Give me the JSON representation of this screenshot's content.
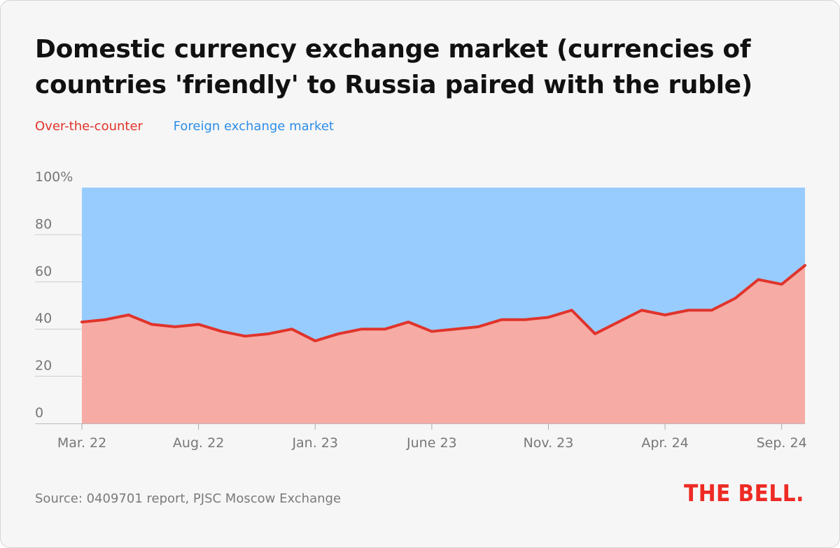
{
  "card": {
    "title": "Domestic currency exchange market (currencies of countries 'friendly' to Russia paired with the ruble)",
    "source": "Source: 0409701 report, PJSC Moscow Exchange",
    "logo": "THE BELL."
  },
  "colors": {
    "otc_line": "#e0342b",
    "otc_fill": "#f7aba5",
    "fx_fill": "#99ccfe",
    "otc_legend": "#e0342b",
    "fx_legend": "#2e8ee8",
    "axis_text": "#777777",
    "grid": "#cccccc"
  },
  "chart_data": {
    "type": "area",
    "stacked": true,
    "percent": true,
    "title": "Domestic currency exchange market (currencies of countries 'friendly' to Russia paired with the ruble)",
    "legend": [
      {
        "name": "Over-the-counter",
        "color": "#e0342b"
      },
      {
        "name": "Foreign exchange market",
        "color": "#2e8ee8"
      }
    ],
    "legend_position": "top-left",
    "x": [
      "2022-03",
      "2022-04",
      "2022-05",
      "2022-06",
      "2022-07",
      "2022-08",
      "2022-09",
      "2022-10",
      "2022-11",
      "2022-12",
      "2023-01",
      "2023-02",
      "2023-03",
      "2023-04",
      "2023-05",
      "2023-06",
      "2023-07",
      "2023-08",
      "2023-09",
      "2023-10",
      "2023-11",
      "2023-12",
      "2024-01",
      "2024-02",
      "2024-03",
      "2024-04",
      "2024-05",
      "2024-06",
      "2024-07",
      "2024-08",
      "2024-09",
      "2024-10"
    ],
    "series": [
      {
        "name": "Over-the-counter",
        "values": [
          43,
          44,
          46,
          42,
          41,
          42,
          39,
          37,
          38,
          40,
          35,
          38,
          40,
          40,
          43,
          39,
          40,
          41,
          44,
          44,
          45,
          48,
          38,
          43,
          48,
          46,
          48,
          48,
          53,
          61,
          59,
          67
        ]
      },
      {
        "name": "Foreign exchange market",
        "values": [
          57,
          56,
          54,
          58,
          59,
          58,
          61,
          63,
          62,
          60,
          65,
          62,
          60,
          60,
          57,
          61,
          60,
          59,
          56,
          56,
          55,
          52,
          62,
          57,
          52,
          54,
          52,
          52,
          47,
          39,
          41,
          33
        ]
      }
    ],
    "x_tick_labels": [
      {
        "label": "Mar. 22",
        "x": "2022-03"
      },
      {
        "label": "Aug. 22",
        "x": "2022-08"
      },
      {
        "label": "Jan. 23",
        "x": "2023-01"
      },
      {
        "label": "June 23",
        "x": "2023-06"
      },
      {
        "label": "Nov. 23",
        "x": "2023-11"
      },
      {
        "label": "Apr. 24",
        "x": "2024-04"
      },
      {
        "label": "Sep. 24",
        "x": "2024-09"
      }
    ],
    "y_ticks": [
      0,
      20,
      40,
      60,
      80,
      100
    ],
    "y_tick_labels": [
      "0",
      "20",
      "40",
      "60",
      "80",
      "100%"
    ],
    "ylim": [
      0,
      100
    ],
    "grid": true
  }
}
